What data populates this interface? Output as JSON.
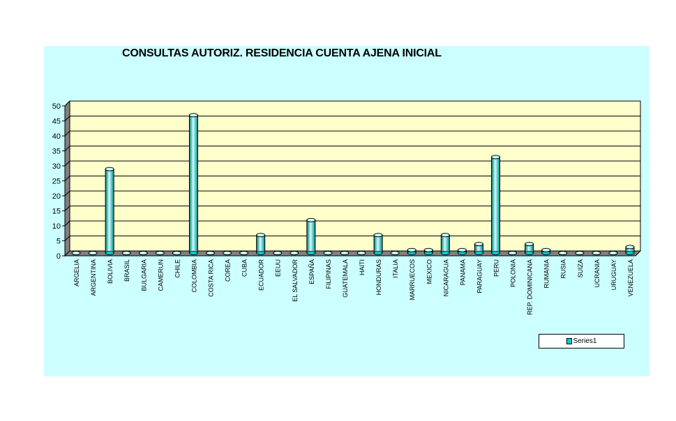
{
  "chart_data": {
    "type": "bar",
    "title": "CONSULTAS AUTORIZ. RESIDENCIA CUENTA AJENA INICIAL",
    "xlabel": "",
    "ylabel": "",
    "ylim": [
      0,
      50
    ],
    "yticks": [
      0,
      5,
      10,
      15,
      20,
      25,
      30,
      35,
      40,
      45,
      50
    ],
    "grid": true,
    "legend_position": "bottom-right",
    "categories": [
      "ARGELIA",
      "ARGENTINA",
      "BOLIVIA",
      "BRASIL",
      "BULGARIA",
      "CAMERUN",
      "CHILE",
      "COLOMBIA",
      "COSTA RICA",
      "COREA",
      "CUBA",
      "ECUADOR",
      "EEUU",
      "EL SALVADOR",
      "ESPAÑA",
      "FILIPINAS",
      "GUATEMALA",
      "HAITI",
      "HONDURAS",
      "ITALIA",
      "MARRUECOS",
      "MEXICO",
      "NICARAGUA",
      "PANAMA",
      "PARAGUAY",
      "PERU",
      "POLONIA",
      "REP. DOMINICANA",
      "RUMANIA",
      "RUSIA",
      "SUIZA",
      "UCRANIA",
      "URUGUAY",
      "VENEZUELA"
    ],
    "series": [
      {
        "name": "Series1",
        "values": [
          0,
          0,
          28,
          0,
          0,
          0,
          0,
          46,
          0,
          0,
          0,
          6,
          0,
          0,
          11,
          0,
          0,
          0,
          6,
          0,
          1,
          1,
          6,
          1,
          3,
          32,
          0,
          3,
          1,
          0,
          0,
          0,
          0,
          2
        ]
      }
    ],
    "colors": {
      "bar": "#00cccc",
      "bar_highlight": "#ccffff",
      "plot_background": "#ffffcc",
      "chart_background": "#ccffff",
      "wall_side": "#808080"
    }
  }
}
